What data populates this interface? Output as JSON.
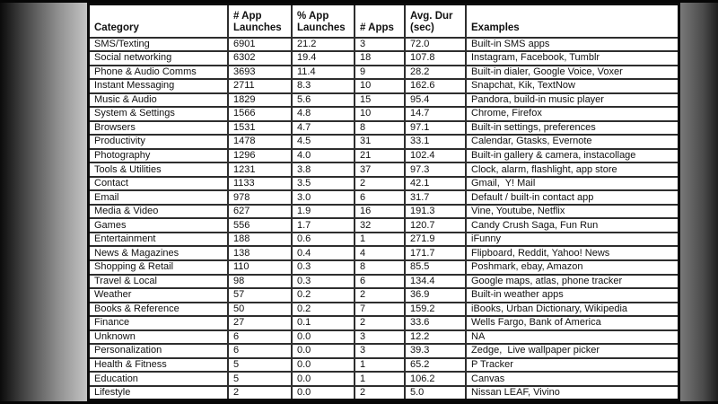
{
  "colors": {
    "table_background": "#ffffff",
    "table_border": "#0a0a0a",
    "text": "#101010",
    "letterbox": "#060606",
    "backdrop_light": "#e4e4e4",
    "backdrop_dark": "#0b0b0b"
  },
  "chart_data": {
    "type": "table",
    "columns": [
      {
        "key": "category",
        "label": "Category"
      },
      {
        "key": "app_launches",
        "label": "# App\nLaunches"
      },
      {
        "key": "pct_launches",
        "label": "% App\nLaunches"
      },
      {
        "key": "num_apps",
        "label": "# Apps"
      },
      {
        "key": "avg_dur",
        "label": "Avg. Dur\n(sec)"
      },
      {
        "key": "examples",
        "label": "Examples"
      }
    ],
    "rows": [
      [
        "SMS/Texting",
        "6901",
        "21.2",
        "3",
        "72.0",
        "Built-in SMS apps"
      ],
      [
        "Social networking",
        "6302",
        "19.4",
        "18",
        "107.8",
        "Instagram, Facebook, Tumblr"
      ],
      [
        "Phone & Audio Comms",
        "3693",
        "11.4",
        "9",
        "28.2",
        "Built-in dialer, Google Voice, Voxer"
      ],
      [
        "Instant Messaging",
        "2711",
        "8.3",
        "10",
        "162.6",
        "Snapchat, Kik, TextNow"
      ],
      [
        "Music & Audio",
        "1829",
        "5.6",
        "15",
        "95.4",
        "Pandora, build-in music player"
      ],
      [
        "System & Settings",
        "1566",
        "4.8",
        "10",
        "14.7",
        "Chrome, Firefox"
      ],
      [
        "Browsers",
        "1531",
        "4.7",
        "8",
        "97.1",
        "Built-in settings, preferences"
      ],
      [
        "Productivity",
        "1478",
        "4.5",
        "31",
        "33.1",
        "Calendar, Gtasks, Evernote"
      ],
      [
        "Photography",
        "1296",
        "4.0",
        "21",
        "102.4",
        "Built-in gallery & camera, instacollage"
      ],
      [
        "Tools & Utilities",
        "1231",
        "3.8",
        "37",
        "97.3",
        "Clock, alarm, flashlight, app store"
      ],
      [
        "Contact",
        "1133",
        "3.5",
        "2",
        "42.1",
        "Gmail,  Y! Mail"
      ],
      [
        "Email",
        "978",
        "3.0",
        "6",
        "31.7",
        "Default / built-in contact app"
      ],
      [
        "Media & Video",
        "627",
        "1.9",
        "16",
        "191.3",
        "Vine, Youtube, Netflix"
      ],
      [
        "Games",
        "556",
        "1.7",
        "32",
        "120.7",
        "Candy Crush Saga, Fun Run"
      ],
      [
        "Entertainment",
        "188",
        "0.6",
        "1",
        "271.9",
        "iFunny"
      ],
      [
        "News & Magazines",
        "138",
        "0.4",
        "4",
        "171.7",
        "Flipboard, Reddit, Yahoo! News"
      ],
      [
        "Shopping & Retail",
        "110",
        "0.3",
        "8",
        "85.5",
        "Poshmark, ebay, Amazon"
      ],
      [
        "Travel & Local",
        "98",
        "0.3",
        "6",
        "134.4",
        "Google maps, atlas, phone tracker"
      ],
      [
        "Weather",
        "57",
        "0.2",
        "2",
        "36.9",
        "Built-in weather apps"
      ],
      [
        "Books & Reference",
        "50",
        "0.2",
        "7",
        "159.2",
        "iBooks, Urban Dictionary, Wikipedia"
      ],
      [
        "Finance",
        "27",
        "0.1",
        "2",
        "33.6",
        "Wells Fargo, Bank of America"
      ],
      [
        "Unknown",
        "6",
        "0.0",
        "3",
        "12.2",
        "NA"
      ],
      [
        "Personalization",
        "6",
        "0.0",
        "3",
        "39.3",
        "Zedge,  Live wallpaper picker"
      ],
      [
        "Health & Fitness",
        "5",
        "0.0",
        "1",
        "65.2",
        "P Tracker"
      ],
      [
        "Education",
        "5",
        "0.0",
        "1",
        "106.2",
        "Canvas"
      ],
      [
        "Lifestyle",
        "2",
        "0.0",
        "2",
        "5.0",
        "Nissan LEAF, Vivino"
      ]
    ]
  }
}
